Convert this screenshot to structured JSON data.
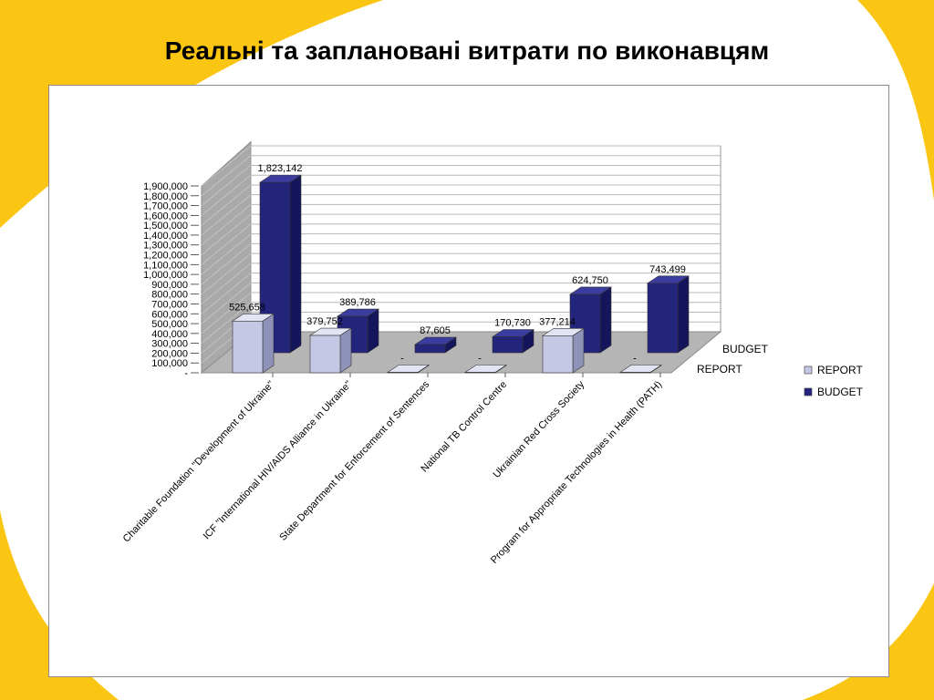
{
  "slide": {
    "title": "Реальні та заплановані витрати по виконавцям"
  },
  "colors": {
    "report": "#c4c8e4",
    "budget": "#23247c",
    "background_yellow": "#fbc514"
  },
  "chart_data": {
    "type": "bar",
    "title": "",
    "xlabel": "",
    "ylabel": "",
    "ylim": [
      0,
      1900000
    ],
    "y_ticks": [
      "-",
      "100,000",
      "200,000",
      "300,000",
      "400,000",
      "500,000",
      "600,000",
      "700,000",
      "800,000",
      "900,000",
      "1,000,000",
      "1,100,000",
      "1,200,000",
      "1,300,000",
      "1,400,000",
      "1,500,000",
      "1,600,000",
      "1,700,000",
      "1,800,000",
      "1,900,000"
    ],
    "categories": [
      "Charitable Foundation \"Development of Ukraine\"",
      "ICF \"International HIV/AIDS Alliance in Ukraine\"",
      "State Department for Enforcement of Sentences",
      "National TB Control Centre",
      "Ukrainian Red Cross Society",
      "Program for Appropriate Technologies in Health (PATH)"
    ],
    "series": [
      {
        "name": "REPORT",
        "values": [
          525658,
          379752,
          0,
          0,
          377214,
          0
        ],
        "labels": [
          "525,658",
          "379,752",
          "-",
          "-",
          "377,214",
          "-"
        ]
      },
      {
        "name": "BUDGET",
        "values": [
          1823142,
          389786,
          87605,
          170730,
          624750,
          743499
        ],
        "labels": [
          "1,823,142",
          "389,786",
          "87,605",
          "170,730",
          "624,750",
          "743,499"
        ]
      }
    ],
    "depth_labels": [
      "REPORT",
      "BUDGET"
    ],
    "legend": {
      "position": "right",
      "entries": [
        "REPORT",
        "BUDGET"
      ]
    },
    "grid": true
  }
}
